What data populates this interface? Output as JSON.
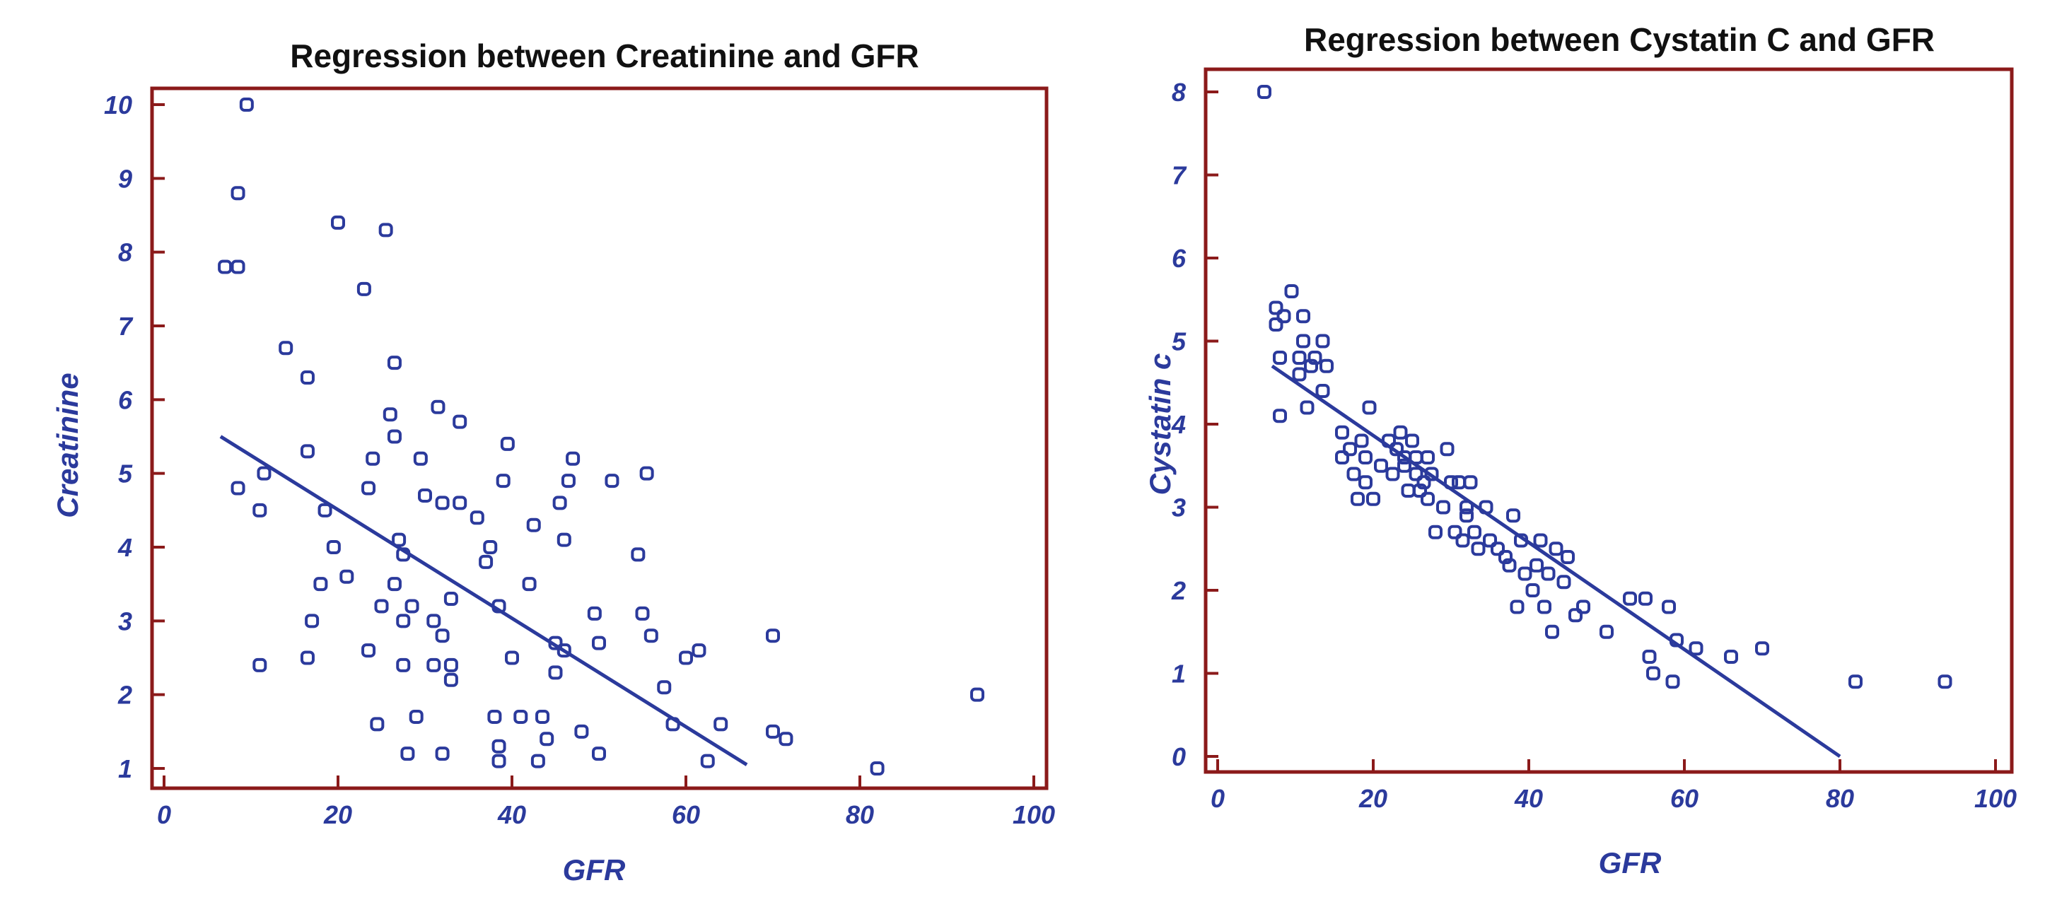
{
  "colors": {
    "frame": "#8b1a1a",
    "marker": "#2b3a9c",
    "text": "#2b3a9c",
    "title": "#111111"
  },
  "chart_data": [
    {
      "type": "scatter",
      "title": "Regression between Creatinine and  GFR",
      "xlabel": "GFR",
      "ylabel": "Creatinine",
      "xlim": [
        0,
        100
      ],
      "ylim": [
        1,
        10
      ],
      "xticks": [
        0,
        20,
        40,
        60,
        80,
        100
      ],
      "yticks": [
        1,
        2,
        3,
        4,
        5,
        6,
        7,
        8,
        9,
        10
      ],
      "grid": false,
      "legend": "none",
      "points": [
        [
          7,
          7.8
        ],
        [
          8.5,
          7.8
        ],
        [
          8.5,
          8.8
        ],
        [
          9.5,
          10
        ],
        [
          8.5,
          4.8
        ],
        [
          11,
          4.5
        ],
        [
          11.5,
          5
        ],
        [
          11,
          2.4
        ],
        [
          14,
          6.7
        ],
        [
          16.5,
          6.3
        ],
        [
          16.5,
          5.3
        ],
        [
          16.5,
          2.5
        ],
        [
          17,
          3
        ],
        [
          18,
          3.5
        ],
        [
          18.5,
          4.5
        ],
        [
          19.5,
          4
        ],
        [
          20,
          8.4
        ],
        [
          21,
          3.6
        ],
        [
          23,
          7.5
        ],
        [
          23.5,
          2.6
        ],
        [
          24,
          5.2
        ],
        [
          23.5,
          4.8
        ],
        [
          24.5,
          1.6
        ],
        [
          25,
          3.2
        ],
        [
          25.5,
          8.3
        ],
        [
          26,
          5.8
        ],
        [
          26.5,
          3.5
        ],
        [
          26.5,
          6.5
        ],
        [
          26.5,
          5.5
        ],
        [
          27,
          4.1
        ],
        [
          27.5,
          3.9
        ],
        [
          27.5,
          3
        ],
        [
          27.5,
          2.4
        ],
        [
          28,
          1.2
        ],
        [
          28.5,
          3.2
        ],
        [
          29,
          1.7
        ],
        [
          29.5,
          5.2
        ],
        [
          30,
          4.7
        ],
        [
          31,
          3
        ],
        [
          31,
          2.4
        ],
        [
          31.5,
          5.9
        ],
        [
          32,
          4.6
        ],
        [
          32,
          2.8
        ],
        [
          32,
          1.2
        ],
        [
          33,
          3.3
        ],
        [
          33,
          2.4
        ],
        [
          33,
          2.2
        ],
        [
          34,
          5.7
        ],
        [
          34,
          4.6
        ],
        [
          36,
          4.4
        ],
        [
          37,
          3.8
        ],
        [
          37.5,
          4
        ],
        [
          38,
          1.7
        ],
        [
          38.5,
          3.2
        ],
        [
          38.5,
          1.3
        ],
        [
          38.5,
          1.1
        ],
        [
          39,
          4.9
        ],
        [
          39.5,
          5.4
        ],
        [
          40,
          2.5
        ],
        [
          41,
          1.7
        ],
        [
          42,
          3.5
        ],
        [
          42.5,
          4.3
        ],
        [
          43,
          1.1
        ],
        [
          43.5,
          1.7
        ],
        [
          44,
          1.4
        ],
        [
          45,
          2.3
        ],
        [
          45,
          2.7
        ],
        [
          45.5,
          4.6
        ],
        [
          46,
          4.1
        ],
        [
          46,
          2.6
        ],
        [
          46.5,
          4.9
        ],
        [
          47,
          5.2
        ],
        [
          48,
          1.5
        ],
        [
          49.5,
          3.1
        ],
        [
          50,
          2.7
        ],
        [
          50,
          1.2
        ],
        [
          51.5,
          4.9
        ],
        [
          54.5,
          3.9
        ],
        [
          55,
          3.1
        ],
        [
          55.5,
          5
        ],
        [
          56,
          2.8
        ],
        [
          57.5,
          2.1
        ],
        [
          58.5,
          1.6
        ],
        [
          60,
          2.5
        ],
        [
          61.5,
          2.6
        ],
        [
          62.5,
          1.1
        ],
        [
          64,
          1.6
        ],
        [
          70,
          2.8
        ],
        [
          70,
          1.5
        ],
        [
          71.5,
          1.4
        ],
        [
          82,
          1
        ],
        [
          93.5,
          2
        ]
      ],
      "regression_line": {
        "x": [
          6.5,
          67
        ],
        "y": [
          5.5,
          1.05
        ]
      }
    },
    {
      "type": "scatter",
      "title": "Regression between  Cystatin C and  GFR",
      "xlabel": "GFR",
      "ylabel": "Cystatin c",
      "xlim": [
        0,
        100
      ],
      "ylim": [
        0,
        8
      ],
      "xticks": [
        0,
        20,
        40,
        60,
        80,
        100
      ],
      "yticks": [
        0,
        1,
        2,
        3,
        4,
        5,
        6,
        7,
        8
      ],
      "grid": false,
      "legend": "none",
      "points": [
        [
          6,
          8
        ],
        [
          7.5,
          5.2
        ],
        [
          7.5,
          5.4
        ],
        [
          8,
          4.8
        ],
        [
          8,
          4.1
        ],
        [
          8.5,
          5.3
        ],
        [
          9.5,
          5.6
        ],
        [
          10.5,
          4.8
        ],
        [
          10.5,
          4.6
        ],
        [
          11,
          5.3
        ],
        [
          11,
          5
        ],
        [
          11.5,
          4.2
        ],
        [
          12,
          4.7
        ],
        [
          12.5,
          4.8
        ],
        [
          13.5,
          5
        ],
        [
          13.5,
          4.4
        ],
        [
          14,
          4.7
        ],
        [
          16,
          3.9
        ],
        [
          16,
          3.6
        ],
        [
          17,
          3.7
        ],
        [
          17.5,
          3.4
        ],
        [
          18,
          3.1
        ],
        [
          18.5,
          3.8
        ],
        [
          19,
          3.6
        ],
        [
          19,
          3.3
        ],
        [
          19.5,
          4.2
        ],
        [
          20,
          3.1
        ],
        [
          21,
          3.5
        ],
        [
          22,
          3.8
        ],
        [
          22.5,
          3.4
        ],
        [
          23,
          3.7
        ],
        [
          23.5,
          3.9
        ],
        [
          24,
          3.5
        ],
        [
          24,
          3.6
        ],
        [
          24.5,
          3.2
        ],
        [
          25,
          3.8
        ],
        [
          25.5,
          3.4
        ],
        [
          25.5,
          3.6
        ],
        [
          26,
          3.2
        ],
        [
          26.5,
          3.3
        ],
        [
          27,
          3.6
        ],
        [
          27,
          3.1
        ],
        [
          27.5,
          3.4
        ],
        [
          28,
          2.7
        ],
        [
          29,
          3
        ],
        [
          29.5,
          3.7
        ],
        [
          30,
          3.3
        ],
        [
          30.5,
          2.7
        ],
        [
          31,
          3.3
        ],
        [
          31.5,
          2.6
        ],
        [
          32,
          3
        ],
        [
          32,
          2.9
        ],
        [
          32.5,
          3.3
        ],
        [
          33,
          2.7
        ],
        [
          33.5,
          2.5
        ],
        [
          34.5,
          3
        ],
        [
          35,
          2.6
        ],
        [
          36,
          2.5
        ],
        [
          37,
          2.4
        ],
        [
          37.5,
          2.3
        ],
        [
          38,
          2.9
        ],
        [
          38.5,
          1.8
        ],
        [
          39,
          2.6
        ],
        [
          39.5,
          2.2
        ],
        [
          40.5,
          2
        ],
        [
          41,
          2.3
        ],
        [
          41.5,
          2.6
        ],
        [
          42,
          1.8
        ],
        [
          42.5,
          2.2
        ],
        [
          43,
          1.5
        ],
        [
          43.5,
          2.5
        ],
        [
          44.5,
          2.1
        ],
        [
          45,
          2.4
        ],
        [
          46,
          1.7
        ],
        [
          47,
          1.8
        ],
        [
          50,
          1.5
        ],
        [
          53,
          1.9
        ],
        [
          55,
          1.9
        ],
        [
          55.5,
          1.2
        ],
        [
          56,
          1
        ],
        [
          58,
          1.8
        ],
        [
          58.5,
          0.9
        ],
        [
          59,
          1.4
        ],
        [
          61.5,
          1.3
        ],
        [
          66,
          1.2
        ],
        [
          70,
          1.3
        ],
        [
          82,
          0.9
        ],
        [
          93.5,
          0.9
        ]
      ],
      "regression_line": {
        "x": [
          7,
          80
        ],
        "y": [
          4.7,
          0
        ]
      }
    }
  ]
}
